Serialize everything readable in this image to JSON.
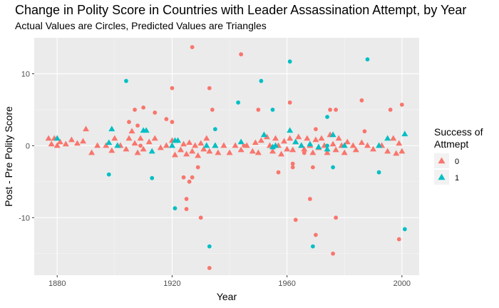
{
  "chart_data": {
    "type": "scatter",
    "title": "Change in Polity Score in Countries with Leader Assassination Attempt, by Year",
    "subtitle": "Actual Values are Circles, Predicted Values are Triangles",
    "xlabel": "Year",
    "ylabel": "Post - Pre Polity Score",
    "xlim": [
      1872,
      2006
    ],
    "ylim": [
      -18,
      15
    ],
    "x_ticks": [
      1880,
      1920,
      1960,
      2000
    ],
    "y_ticks": [
      -10,
      0,
      10
    ],
    "grid": true,
    "legend": {
      "title": "Success of\n Attmept",
      "position": "right",
      "entries": [
        {
          "label": "0",
          "color": "#F8766D"
        },
        {
          "label": "1",
          "color": "#00BFC4"
        }
      ]
    },
    "series": [
      {
        "name": "0",
        "color": "#F8766D",
        "actual_points": [
          [
            1905,
            3.3
          ],
          [
            1907,
            5.0
          ],
          [
            1908,
            2.8
          ],
          [
            1910,
            5.3
          ],
          [
            1914,
            4.6
          ],
          [
            1918,
            3.7
          ],
          [
            1920,
            3.3
          ],
          [
            1920,
            8.0
          ],
          [
            1924,
            -4.4
          ],
          [
            1925,
            -7.4
          ],
          [
            1925,
            -8.8
          ],
          [
            1926,
            -5.0
          ],
          [
            1927,
            -4.4
          ],
          [
            1927,
            13.7
          ],
          [
            1929,
            -3.0
          ],
          [
            1930,
            -10.0
          ],
          [
            1933,
            8.0
          ],
          [
            1934,
            5.0
          ],
          [
            1933,
            -17.0
          ],
          [
            1944,
            12.7
          ],
          [
            1950,
            5.0
          ],
          [
            1961,
            6.0
          ],
          [
            1962,
            -3.0
          ],
          [
            1963,
            -10.3
          ],
          [
            1968,
            -7.4
          ],
          [
            1969,
            -3.0
          ],
          [
            1970,
            -12.4
          ],
          [
            1976,
            -15.0
          ],
          [
            1977,
            -10.0
          ],
          [
            1975,
            5.0
          ],
          [
            1977,
            5.0
          ],
          [
            1986,
            6.3
          ],
          [
            1987,
            2.0
          ],
          [
            1996,
            5.0
          ],
          [
            1999,
            -13.0
          ],
          [
            2000,
            5.7
          ],
          [
            1909,
            0.0
          ],
          [
            1945,
            0.0
          ],
          [
            1957,
            -3.7
          ],
          [
            1962,
            -2.5
          ],
          [
            1966,
            -1.0
          ],
          [
            1970,
            2.3
          ]
        ],
        "predicted_points": [
          [
            1877,
            1.0
          ],
          [
            1878,
            0.2
          ],
          [
            1879,
            1.0
          ],
          [
            1880,
            0.0
          ],
          [
            1881,
            0.5
          ],
          [
            1883,
            0.2
          ],
          [
            1885,
            0.8
          ],
          [
            1887,
            0.3
          ],
          [
            1889,
            0.6
          ],
          [
            1890,
            2.3
          ],
          [
            1892,
            -1.0
          ],
          [
            1894,
            0.0
          ],
          [
            1897,
            0.0
          ],
          [
            1899,
            -0.7
          ],
          [
            1900,
            1.0
          ],
          [
            1902,
            0.0
          ],
          [
            1904,
            -0.5
          ],
          [
            1905,
            1.0
          ],
          [
            1906,
            2.0
          ],
          [
            1907,
            0.3
          ],
          [
            1908,
            -1.0
          ],
          [
            1909,
            1.0
          ],
          [
            1910,
            -0.5
          ],
          [
            1912,
            0.5
          ],
          [
            1914,
            1.0
          ],
          [
            1916,
            -0.3
          ],
          [
            1918,
            0.0
          ],
          [
            1920,
            0.7
          ],
          [
            1921,
            -1.3
          ],
          [
            1923,
            -0.6
          ],
          [
            1924,
            0.2
          ],
          [
            1925,
            -1.2
          ],
          [
            1926,
            0.4
          ],
          [
            1927,
            -0.8
          ],
          [
            1928,
            0.0
          ],
          [
            1929,
            -1.4
          ],
          [
            1930,
            0.3
          ],
          [
            1931,
            -0.5
          ],
          [
            1932,
            1.0
          ],
          [
            1933,
            -0.8
          ],
          [
            1935,
            0.0
          ],
          [
            1936,
            -1.0
          ],
          [
            1938,
            0.0
          ],
          [
            1940,
            -1.0
          ],
          [
            1942,
            0.0
          ],
          [
            1944,
            -0.6
          ],
          [
            1946,
            0.0
          ],
          [
            1948,
            -0.8
          ],
          [
            1949,
            0.4
          ],
          [
            1950,
            -1.0
          ],
          [
            1951,
            0.7
          ],
          [
            1953,
            1.2
          ],
          [
            1954,
            0.0
          ],
          [
            1955,
            -0.8
          ],
          [
            1956,
            1.0
          ],
          [
            1957,
            0.0
          ],
          [
            1958,
            -1.2
          ],
          [
            1959,
            0.6
          ],
          [
            1960,
            -0.5
          ],
          [
            1961,
            1.0
          ],
          [
            1962,
            -0.6
          ],
          [
            1963,
            0.5
          ],
          [
            1964,
            1.2
          ],
          [
            1965,
            0.0
          ],
          [
            1966,
            -0.5
          ],
          [
            1967,
            1.0
          ],
          [
            1968,
            0.0
          ],
          [
            1969,
            -1.0
          ],
          [
            1970,
            0.8
          ],
          [
            1971,
            -0.3
          ],
          [
            1972,
            1.0
          ],
          [
            1973,
            0.0
          ],
          [
            1974,
            -1.0
          ],
          [
            1975,
            1.5
          ],
          [
            1976,
            0.2
          ],
          [
            1977,
            -0.6
          ],
          [
            1978,
            1.0
          ],
          [
            1979,
            0.0
          ],
          [
            1980,
            -1.0
          ],
          [
            1981,
            0.5
          ],
          [
            1983,
            0.0
          ],
          [
            1984,
            -0.6
          ],
          [
            1986,
            0.4
          ],
          [
            1988,
            0.0
          ],
          [
            1990,
            -0.5
          ],
          [
            1993,
            0.0
          ],
          [
            1995,
            -0.8
          ],
          [
            1997,
            1.0
          ],
          [
            1998,
            -1.1
          ],
          [
            1999,
            0.3
          ],
          [
            2000,
            -0.8
          ]
        ]
      },
      {
        "name": "1",
        "color": "#00BFC4",
        "actual_points": [
          [
            1898,
            -4.0
          ],
          [
            1904,
            9.0
          ],
          [
            1913,
            -4.5
          ],
          [
            1921,
            -8.7
          ],
          [
            1933,
            -14.0
          ],
          [
            1943,
            6.0
          ],
          [
            1951,
            9.0
          ],
          [
            1955,
            5.0
          ],
          [
            1961,
            11.7
          ],
          [
            1969,
            -14.0
          ],
          [
            1974,
            4.0
          ],
          [
            1976,
            -3.0
          ],
          [
            1988,
            12.0
          ],
          [
            1992,
            -3.7
          ],
          [
            2001,
            -11.6
          ],
          [
            1974,
            0.0
          ],
          [
            1935,
            2.3
          ]
        ],
        "predicted_points": [
          [
            1880,
            1.0
          ],
          [
            1898,
            0.4
          ],
          [
            1899,
            2.3
          ],
          [
            1901,
            0.0
          ],
          [
            1910,
            2.1
          ],
          [
            1911,
            2.1
          ],
          [
            1913,
            -0.8
          ],
          [
            1920,
            0.0
          ],
          [
            1921,
            0.7
          ],
          [
            1922,
            0.7
          ],
          [
            1932,
            0.0
          ],
          [
            1935,
            0.0
          ],
          [
            1944,
            0.5
          ],
          [
            1952,
            1.5
          ],
          [
            1955,
            -0.2
          ],
          [
            1956,
            0.0
          ],
          [
            1961,
            2.1
          ],
          [
            1963,
            0.5
          ],
          [
            1965,
            0.0
          ],
          [
            1968,
            0.2
          ],
          [
            1971,
            -0.2
          ],
          [
            1974,
            -0.5
          ],
          [
            1976,
            1.5
          ],
          [
            1980,
            0.0
          ],
          [
            1992,
            0.0
          ],
          [
            1995,
            1.0
          ],
          [
            2001,
            1.6
          ]
        ]
      }
    ]
  }
}
